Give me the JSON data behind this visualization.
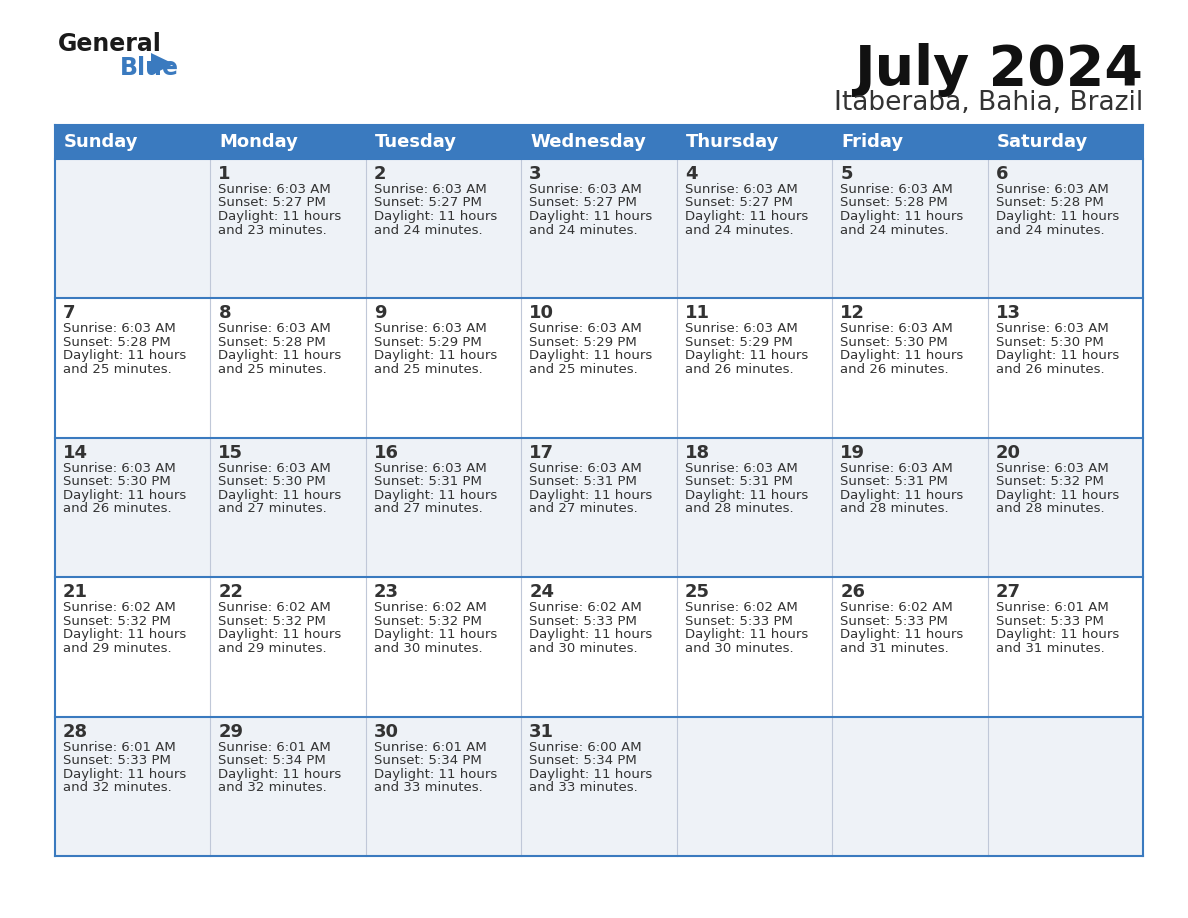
{
  "title": "July 2024",
  "subtitle": "Itaberaba, Bahia, Brazil",
  "header_bg": "#3a7abf",
  "header_text": "#ffffff",
  "row_bg_light": "#eef2f7",
  "row_bg_white": "#ffffff",
  "days_of_week": [
    "Sunday",
    "Monday",
    "Tuesday",
    "Wednesday",
    "Thursday",
    "Friday",
    "Saturday"
  ],
  "calendar": [
    [
      {
        "day": null,
        "sunrise": null,
        "sunset": null,
        "daylight": null
      },
      {
        "day": 1,
        "sunrise": "6:03 AM",
        "sunset": "5:27 PM",
        "daylight": "11 hours and 23 minutes."
      },
      {
        "day": 2,
        "sunrise": "6:03 AM",
        "sunset": "5:27 PM",
        "daylight": "11 hours and 24 minutes."
      },
      {
        "day": 3,
        "sunrise": "6:03 AM",
        "sunset": "5:27 PM",
        "daylight": "11 hours and 24 minutes."
      },
      {
        "day": 4,
        "sunrise": "6:03 AM",
        "sunset": "5:27 PM",
        "daylight": "11 hours and 24 minutes."
      },
      {
        "day": 5,
        "sunrise": "6:03 AM",
        "sunset": "5:28 PM",
        "daylight": "11 hours and 24 minutes."
      },
      {
        "day": 6,
        "sunrise": "6:03 AM",
        "sunset": "5:28 PM",
        "daylight": "11 hours and 24 minutes."
      }
    ],
    [
      {
        "day": 7,
        "sunrise": "6:03 AM",
        "sunset": "5:28 PM",
        "daylight": "11 hours and 25 minutes."
      },
      {
        "day": 8,
        "sunrise": "6:03 AM",
        "sunset": "5:28 PM",
        "daylight": "11 hours and 25 minutes."
      },
      {
        "day": 9,
        "sunrise": "6:03 AM",
        "sunset": "5:29 PM",
        "daylight": "11 hours and 25 minutes."
      },
      {
        "day": 10,
        "sunrise": "6:03 AM",
        "sunset": "5:29 PM",
        "daylight": "11 hours and 25 minutes."
      },
      {
        "day": 11,
        "sunrise": "6:03 AM",
        "sunset": "5:29 PM",
        "daylight": "11 hours and 26 minutes."
      },
      {
        "day": 12,
        "sunrise": "6:03 AM",
        "sunset": "5:30 PM",
        "daylight": "11 hours and 26 minutes."
      },
      {
        "day": 13,
        "sunrise": "6:03 AM",
        "sunset": "5:30 PM",
        "daylight": "11 hours and 26 minutes."
      }
    ],
    [
      {
        "day": 14,
        "sunrise": "6:03 AM",
        "sunset": "5:30 PM",
        "daylight": "11 hours and 26 minutes."
      },
      {
        "day": 15,
        "sunrise": "6:03 AM",
        "sunset": "5:30 PM",
        "daylight": "11 hours and 27 minutes."
      },
      {
        "day": 16,
        "sunrise": "6:03 AM",
        "sunset": "5:31 PM",
        "daylight": "11 hours and 27 minutes."
      },
      {
        "day": 17,
        "sunrise": "6:03 AM",
        "sunset": "5:31 PM",
        "daylight": "11 hours and 27 minutes."
      },
      {
        "day": 18,
        "sunrise": "6:03 AM",
        "sunset": "5:31 PM",
        "daylight": "11 hours and 28 minutes."
      },
      {
        "day": 19,
        "sunrise": "6:03 AM",
        "sunset": "5:31 PM",
        "daylight": "11 hours and 28 minutes."
      },
      {
        "day": 20,
        "sunrise": "6:03 AM",
        "sunset": "5:32 PM",
        "daylight": "11 hours and 28 minutes."
      }
    ],
    [
      {
        "day": 21,
        "sunrise": "6:02 AM",
        "sunset": "5:32 PM",
        "daylight": "11 hours and 29 minutes."
      },
      {
        "day": 22,
        "sunrise": "6:02 AM",
        "sunset": "5:32 PM",
        "daylight": "11 hours and 29 minutes."
      },
      {
        "day": 23,
        "sunrise": "6:02 AM",
        "sunset": "5:32 PM",
        "daylight": "11 hours and 30 minutes."
      },
      {
        "day": 24,
        "sunrise": "6:02 AM",
        "sunset": "5:33 PM",
        "daylight": "11 hours and 30 minutes."
      },
      {
        "day": 25,
        "sunrise": "6:02 AM",
        "sunset": "5:33 PM",
        "daylight": "11 hours and 30 minutes."
      },
      {
        "day": 26,
        "sunrise": "6:02 AM",
        "sunset": "5:33 PM",
        "daylight": "11 hours and 31 minutes."
      },
      {
        "day": 27,
        "sunrise": "6:01 AM",
        "sunset": "5:33 PM",
        "daylight": "11 hours and 31 minutes."
      }
    ],
    [
      {
        "day": 28,
        "sunrise": "6:01 AM",
        "sunset": "5:33 PM",
        "daylight": "11 hours and 32 minutes."
      },
      {
        "day": 29,
        "sunrise": "6:01 AM",
        "sunset": "5:34 PM",
        "daylight": "11 hours and 32 minutes."
      },
      {
        "day": 30,
        "sunrise": "6:01 AM",
        "sunset": "5:34 PM",
        "daylight": "11 hours and 33 minutes."
      },
      {
        "day": 31,
        "sunrise": "6:00 AM",
        "sunset": "5:34 PM",
        "daylight": "11 hours and 33 minutes."
      },
      {
        "day": null,
        "sunrise": null,
        "sunset": null,
        "daylight": null
      },
      {
        "day": null,
        "sunrise": null,
        "sunset": null,
        "daylight": null
      },
      {
        "day": null,
        "sunrise": null,
        "sunset": null,
        "daylight": null
      }
    ]
  ],
  "logo_general_color": "#1a1a1a",
  "logo_blue_color": "#3a7abf",
  "logo_triangle_color": "#3a7abf",
  "text_color": "#333333",
  "border_color": "#3a7abf",
  "sep_color": "#c0c8d8",
  "title_color": "#111111",
  "subtitle_color": "#333333",
  "font_size_title": 40,
  "font_size_subtitle": 19,
  "font_size_header": 13,
  "font_size_day_num": 13,
  "font_size_cell_text": 9.5
}
